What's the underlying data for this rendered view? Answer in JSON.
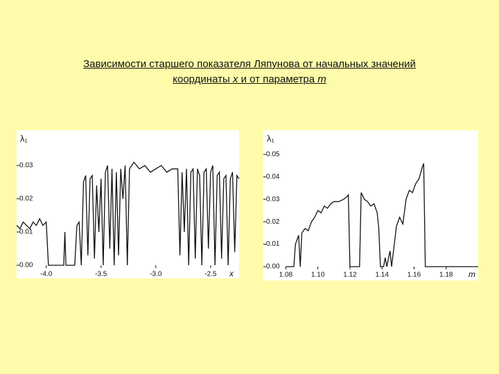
{
  "title": {
    "line1": "Зависимости старшего показателя Ляпунова от начальных значений",
    "line2": [
      "координаты ",
      "x",
      " и от параметра ",
      "m"
    ]
  },
  "chart_data": [
    {
      "type": "line",
      "ylabel": "λ₁",
      "xlabel": "x",
      "xlim": [
        -4.27,
        -2.24
      ],
      "ylim": [
        0,
        0.04
      ],
      "xticks": [
        {
          "value": -4,
          "label": "-4.0"
        },
        -3.5,
        {
          "value": -3,
          "label": "-3.0"
        },
        -2.5
      ],
      "yticks": [
        {
          "value": 0,
          "label": "0.00"
        },
        {
          "value": 0.01,
          "label": "0.01"
        },
        {
          "value": 0.02,
          "label": "0.02"
        },
        {
          "value": 0.03,
          "label": "0.03"
        }
      ],
      "color": "#111111",
      "x": [
        -4.27,
        -4.24,
        -4.21,
        -4.18,
        -4.15,
        -4.12,
        -4.09,
        -4.06,
        -4.03,
        -4.0,
        -3.98,
        -3.9,
        -3.84,
        -3.83,
        -3.82,
        -3.74,
        -3.72,
        -3.7,
        -3.68,
        -3.66,
        -3.64,
        -3.62,
        -3.6,
        -3.58,
        -3.56,
        -3.54,
        -3.52,
        -3.5,
        -3.48,
        -3.46,
        -3.44,
        -3.42,
        -3.4,
        -3.38,
        -3.36,
        -3.34,
        -3.32,
        -3.3,
        -3.28,
        -3.26,
        -3.24,
        -3.2,
        -3.15,
        -3.1,
        -3.05,
        -3.0,
        -2.95,
        -2.9,
        -2.85,
        -2.8,
        -2.78,
        -2.76,
        -2.74,
        -2.72,
        -2.7,
        -2.68,
        -2.66,
        -2.64,
        -2.62,
        -2.6,
        -2.58,
        -2.56,
        -2.54,
        -2.52,
        -2.5,
        -2.48,
        -2.46,
        -2.44,
        -2.42,
        -2.4,
        -2.38,
        -2.36,
        -2.34,
        -2.32,
        -2.3,
        -2.28,
        -2.26,
        -2.24
      ],
      "values": [
        0.012,
        0.011,
        0.013,
        0.012,
        0.011,
        0.013,
        0.012,
        0.014,
        0.012,
        0.013,
        0,
        0,
        0,
        0.01,
        0,
        0,
        0.012,
        0.013,
        0,
        0.025,
        0.027,
        0.003,
        0.026,
        0.027,
        0.002,
        0.024,
        0.01,
        0.026,
        0,
        0.028,
        0.03,
        0.005,
        0.029,
        0,
        0.028,
        0.003,
        0.029,
        0.02,
        0.03,
        0,
        0.029,
        0.031,
        0.029,
        0.03,
        0.028,
        0.029,
        0.03,
        0.028,
        0.029,
        0.029,
        0.003,
        0.028,
        0.01,
        0.029,
        0,
        0.028,
        0.029,
        0.002,
        0.029,
        0.027,
        0,
        0.028,
        0.029,
        0.005,
        0.028,
        0.03,
        0,
        0.027,
        0.028,
        0.002,
        0.026,
        0.027,
        0,
        0.026,
        0.028,
        0.004,
        0.027,
        0.026
      ]
    },
    {
      "type": "line",
      "ylabel": "λ₁",
      "xlabel": "m",
      "xlim": [
        1.066,
        1.2
      ],
      "ylim": [
        0,
        0.06
      ],
      "xticks": [
        1.08,
        {
          "value": 1.1,
          "label": "1.10"
        },
        1.12,
        1.14,
        1.16,
        1.18
      ],
      "yticks": [
        {
          "value": 0,
          "label": "0.00"
        },
        {
          "value": 0.01,
          "label": "0.01"
        },
        {
          "value": 0.02,
          "label": "0.02"
        },
        {
          "value": 0.03,
          "label": "0.03"
        },
        {
          "value": 0.04,
          "label": "0.04"
        },
        {
          "value": 0.05,
          "label": "0.05"
        }
      ],
      "color": "#111111",
      "x": [
        1.08,
        1.085,
        1.086,
        1.088,
        1.089,
        1.09,
        1.092,
        1.094,
        1.096,
        1.098,
        1.1,
        1.102,
        1.104,
        1.106,
        1.108,
        1.11,
        1.113,
        1.116,
        1.118,
        1.119,
        1.12,
        1.126,
        1.127,
        1.129,
        1.131,
        1.133,
        1.135,
        1.137,
        1.138,
        1.139,
        1.141,
        1.142,
        1.143,
        1.145,
        1.146,
        1.147,
        1.149,
        1.151,
        1.153,
        1.155,
        1.157,
        1.159,
        1.161,
        1.163,
        1.165,
        1.166,
        1.167,
        1.2
      ],
      "values": [
        0,
        0,
        0.01,
        0.014,
        0,
        0.015,
        0.017,
        0.016,
        0.02,
        0.022,
        0.025,
        0.024,
        0.027,
        0.026,
        0.028,
        0.029,
        0.029,
        0.03,
        0.031,
        0.032,
        0,
        0,
        0.033,
        0.03,
        0.029,
        0.027,
        0.028,
        0.024,
        0.017,
        0,
        0,
        0.004,
        0,
        0.007,
        0,
        0.006,
        0.018,
        0.022,
        0.019,
        0.03,
        0.034,
        0.033,
        0.037,
        0.039,
        0.044,
        0.046,
        0,
        0
      ]
    }
  ]
}
